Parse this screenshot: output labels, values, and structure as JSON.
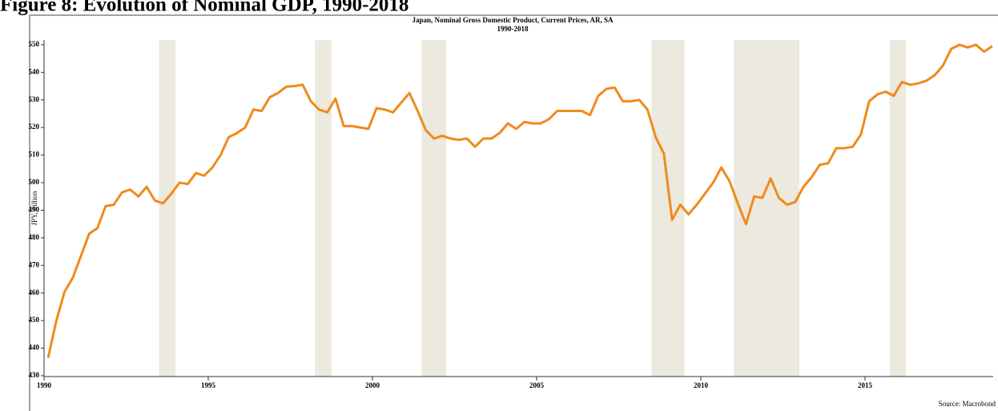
{
  "figure_caption": "Figure 8: Evolution of Nominal GDP, 1990-2018",
  "chart_data": {
    "type": "line",
    "title": "Japan, Nominal Gross Domestic Product, Current Prices, AR, SA",
    "subtitle": "1990-2018",
    "y_label": "JPY, trillion",
    "source": "Source: Macrobond",
    "xlim": [
      1990,
      2019
    ],
    "xticks": [
      1990,
      1995,
      2000,
      2005,
      2010,
      2015
    ],
    "ylim": [
      429.7,
      551.7
    ],
    "yticks": [
      430,
      440,
      450,
      460,
      470,
      480,
      490,
      500,
      510,
      520,
      530,
      540,
      550
    ],
    "shaded_color": "#ece9de",
    "shaded": [
      [
        1993.5,
        1994
      ],
      [
        1998.25,
        1998.75
      ],
      [
        2001.5,
        2002.25
      ],
      [
        2008.5,
        2009.5
      ],
      [
        2011,
        2013
      ],
      [
        2015.75,
        2016.25
      ]
    ],
    "x": [
      1990.125,
      1990.375,
      1990.625,
      1990.875,
      1991.125,
      1991.375,
      1991.625,
      1991.875,
      1992.125,
      1992.375,
      1992.625,
      1992.875,
      1993.125,
      1993.375,
      1993.625,
      1993.875,
      1994.125,
      1994.375,
      1994.625,
      1994.875,
      1995.125,
      1995.375,
      1995.625,
      1995.875,
      1996.125,
      1996.375,
      1996.625,
      1996.875,
      1997.125,
      1997.375,
      1997.625,
      1997.875,
      1998.125,
      1998.375,
      1998.625,
      1998.875,
      1999.125,
      1999.375,
      1999.625,
      1999.875,
      2000.125,
      2000.375,
      2000.625,
      2000.875,
      2001.125,
      2001.375,
      2001.625,
      2001.875,
      2002.125,
      2002.375,
      2002.625,
      2002.875,
      2003.125,
      2003.375,
      2003.625,
      2003.875,
      2004.125,
      2004.375,
      2004.625,
      2004.875,
      2005.125,
      2005.375,
      2005.625,
      2005.875,
      2006.125,
      2006.375,
      2006.625,
      2006.875,
      2007.125,
      2007.375,
      2007.625,
      2007.875,
      2008.125,
      2008.375,
      2008.625,
      2008.875,
      2009.125,
      2009.375,
      2009.625,
      2009.875,
      2010.125,
      2010.375,
      2010.625,
      2010.875,
      2011.125,
      2011.375,
      2011.625,
      2011.875,
      2012.125,
      2012.375,
      2012.625,
      2012.875,
      2013.125,
      2013.375,
      2013.625,
      2013.875,
      2014.125,
      2014.375,
      2014.625,
      2014.875,
      2015.125,
      2015.375,
      2015.625,
      2015.875,
      2016.125,
      2016.375,
      2016.625,
      2016.875,
      2017.125,
      2017.375,
      2017.625,
      2017.875,
      2018.125,
      2018.375,
      2018.625,
      2018.875
    ],
    "series": [
      {
        "color": "#f08a1c",
        "values": [
          436.5,
          450,
          460.5,
          465.5,
          473.5,
          481.5,
          483.5,
          491.5,
          492,
          496.5,
          497.5,
          495,
          498.5,
          493.5,
          492.5,
          496,
          500,
          499.5,
          503.5,
          502.5,
          505.5,
          510,
          516.5,
          518,
          520,
          526.5,
          526,
          531,
          532.5,
          534.8,
          535,
          535.5,
          529.5,
          526.5,
          525.5,
          530.5,
          520.5,
          520.5,
          520,
          519.5,
          527,
          526.5,
          525.5,
          529,
          532.5,
          526,
          519,
          516,
          517,
          516,
          515.5,
          516,
          513,
          516,
          516,
          518,
          521.5,
          519.5,
          522,
          521.5,
          521.5,
          523,
          526,
          526,
          526,
          526,
          524.5,
          531.5,
          534,
          534.5,
          529.5,
          529.5,
          530,
          526.5,
          516.5,
          510.5,
          486.5,
          492,
          488.5,
          492,
          496,
          500,
          505.5,
          500.5,
          492.5,
          485,
          495,
          494.5,
          501.5,
          494.5,
          492,
          493,
          498.5,
          502,
          506.5,
          507,
          512.5,
          512.5,
          513,
          517.5,
          529.5,
          532,
          533,
          531.5,
          536.5,
          535.5,
          536,
          537,
          539,
          542.5,
          548.5,
          550,
          549,
          550,
          547.5,
          549.5
        ]
      }
    ]
  }
}
